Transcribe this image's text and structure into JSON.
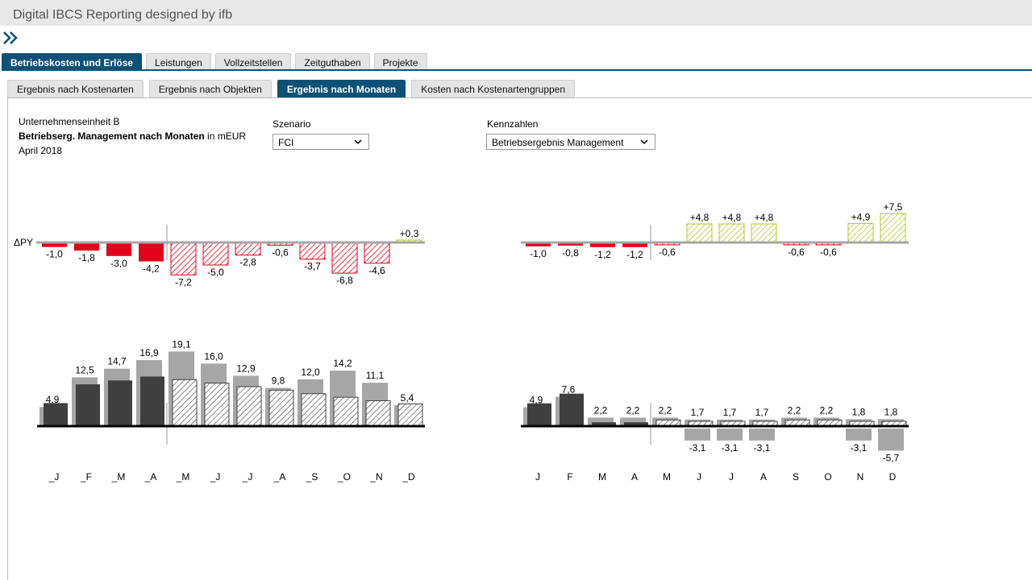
{
  "app": {
    "title": "Digital IBCS Reporting designed by ifb"
  },
  "main_tabs": [
    {
      "label": "Betriebskosten und Erlöse",
      "active": true
    },
    {
      "label": "Leistungen",
      "active": false
    },
    {
      "label": "Vollzeitstellen",
      "active": false
    },
    {
      "label": "Zeitguthaben",
      "active": false
    },
    {
      "label": "Projekte",
      "active": false
    }
  ],
  "sub_tabs": [
    {
      "label": "Ergebnis nach Kostenarten",
      "active": false
    },
    {
      "label": "Ergebnis nach Objekten",
      "active": false
    },
    {
      "label": "Ergebnis nach Monaten",
      "active": true
    },
    {
      "label": "Kosten nach Kostenartengruppen",
      "active": false
    }
  ],
  "report": {
    "unit": "Unternehmenseinheit B",
    "title_bold": "Betriebserg. Management nach Monaten",
    "title_suffix": " in mEUR",
    "period": "April 2018"
  },
  "filters": {
    "szenario_label": "Szenario",
    "szenario_value": "FCI",
    "kennzahlen_label": "Kennzahlen",
    "kennzahlen_value": "Betriebsergebnis Management"
  },
  "colors": {
    "accent": "#0f5176",
    "negative": "#e2001a",
    "positive": "#b5c827",
    "actual": "#404040",
    "previous": "#a6a6a6"
  },
  "chart_data": [
    {
      "type": "bar",
      "chart": "left-delta-py",
      "axis_label": "ΔPY",
      "months": [
        "J",
        "F",
        "M",
        "A",
        "M",
        "J",
        "J",
        "A",
        "S",
        "O",
        "N",
        "D"
      ],
      "values": [
        -1.0,
        -1.8,
        -3.0,
        -4.2,
        -7.2,
        -5.0,
        -2.8,
        -0.6,
        -3.7,
        -6.8,
        -4.6,
        0.3
      ],
      "labels": [
        "-1,0",
        "-1,8",
        "-3,0",
        "-4,2",
        "-7,2",
        "-5,0",
        "-2,8",
        "-0,6",
        "-3,7",
        "-6,8",
        "-4,6",
        "+0,3"
      ],
      "actual_months": 4
    },
    {
      "type": "bar",
      "chart": "right-delta",
      "months": [
        "J",
        "F",
        "M",
        "A",
        "M",
        "J",
        "J",
        "A",
        "S",
        "O",
        "N",
        "D"
      ],
      "values": [
        -1.0,
        -0.8,
        -1.2,
        -1.2,
        -0.6,
        4.8,
        4.8,
        4.8,
        -0.6,
        -0.6,
        4.9,
        7.5
      ],
      "labels": [
        "-1,0",
        "-0,8",
        "-1,2",
        "-1,2",
        "-0,6",
        "+4,8",
        "+4,8",
        "+4,8",
        "-0,6",
        "-0,6",
        "+4,9",
        "+7,5"
      ],
      "actual_months": 4
    },
    {
      "type": "bar",
      "chart": "left-main",
      "categories": [
        "_J",
        "_F",
        "_M",
        "_A",
        "_M",
        "_J",
        "_J",
        "_A",
        "_S",
        "_O",
        "_N",
        "_D"
      ],
      "values": [
        4.9,
        12.5,
        14.7,
        16.9,
        19.1,
        16.0,
        12.9,
        9.8,
        12.0,
        14.2,
        11.1,
        5.4
      ],
      "labels": [
        "4,9",
        "12,5",
        "14,7",
        "16,9",
        "19,1",
        "16,0",
        "12,9",
        "9,8",
        "12,0",
        "14,2",
        "11,1",
        "5,4"
      ],
      "comparison": [
        5.9,
        10.7,
        11.7,
        12.7,
        11.9,
        11.0,
        10.1,
        9.2,
        8.3,
        7.4,
        6.5,
        5.7
      ],
      "actual_months": 4
    },
    {
      "type": "bar",
      "chart": "right-main",
      "categories": [
        "J",
        "F",
        "M",
        "A",
        "M",
        "J",
        "J",
        "A",
        "S",
        "O",
        "N",
        "D"
      ],
      "values": [
        4.9,
        7.6,
        2.2,
        2.2,
        2.2,
        1.7,
        1.7,
        1.7,
        2.2,
        2.2,
        1.8,
        1.8
      ],
      "labels": [
        "4,9",
        "7,6",
        "2,2",
        "2,2",
        "2,2",
        "1,7",
        "1,7",
        "1,7",
        "2,2",
        "2,2",
        "1,8",
        "1,8"
      ],
      "comparison": [
        5.9,
        8.4,
        1.0,
        1.0,
        1.6,
        0,
        0,
        0,
        1.6,
        1.6,
        0,
        0
      ],
      "negatives": [
        0,
        0,
        0,
        0,
        0,
        -3.1,
        -3.1,
        -3.1,
        0,
        0,
        -3.1,
        -5.7
      ],
      "negative_labels": [
        "",
        "",
        "",
        "",
        "",
        "-3,1",
        "-3,1",
        "-3,1",
        "",
        "",
        "-3,1",
        "-5,7"
      ],
      "actual_months": 4
    }
  ]
}
